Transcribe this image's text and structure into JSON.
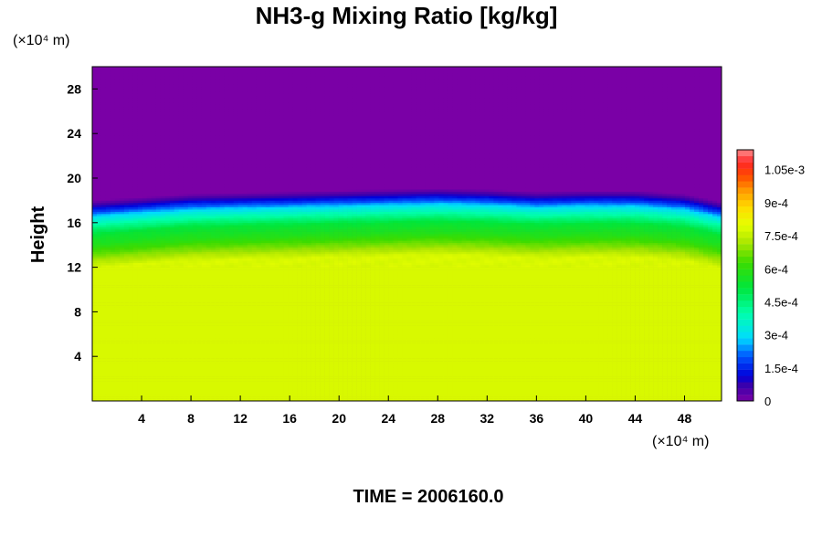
{
  "chart_data": {
    "type": "heatmap",
    "title": "NH3-g Mixing Ratio [kg/kg]",
    "xlabel": "",
    "ylabel": "Height",
    "x_unit_label": "(×10⁴ m)",
    "y_unit_label": "(×10⁴ m)",
    "footer": "TIME = 2006160.0",
    "xlim": [
      0,
      51
    ],
    "ylim": [
      0,
      30
    ],
    "x_ticks": [
      4,
      8,
      12,
      16,
      20,
      24,
      28,
      32,
      36,
      40,
      44,
      48
    ],
    "y_ticks": [
      4,
      8,
      12,
      16,
      20,
      24,
      28
    ],
    "colorbar": {
      "min": 0,
      "max": 0.00114,
      "tick_values": [
        0,
        0.00015,
        0.0003,
        0.00045,
        0.0006,
        0.00075,
        0.0009,
        0.00105
      ],
      "tick_labels": [
        "0",
        "1.5e-4",
        "3e-4",
        "4.5e-4",
        "6e-4",
        "7.5e-4",
        "9e-4",
        "1.05e-3"
      ]
    },
    "field_profile": {
      "description_free": true,
      "height": [
        0,
        12,
        13,
        14,
        15,
        15.5,
        16,
        16.5,
        17,
        17.5,
        18,
        30
      ],
      "value": [
        0.00078,
        0.00078,
        0.00068,
        0.00058,
        0.00052,
        0.00045,
        0.00038,
        0.0003,
        0.00018,
        8e-05,
        0,
        0
      ]
    },
    "top_boundary": {
      "x": [
        0,
        4,
        8,
        12,
        16,
        20,
        24,
        28,
        32,
        36,
        40,
        44,
        48,
        51
      ],
      "height": [
        17.0,
        17.3,
        17.6,
        17.7,
        17.8,
        17.9,
        18.0,
        18.1,
        18.0,
        17.8,
        17.9,
        17.9,
        17.6,
        16.9
      ]
    },
    "colors": {
      "background_field": "#7a00a6",
      "lower_field": "#ddff00"
    }
  }
}
